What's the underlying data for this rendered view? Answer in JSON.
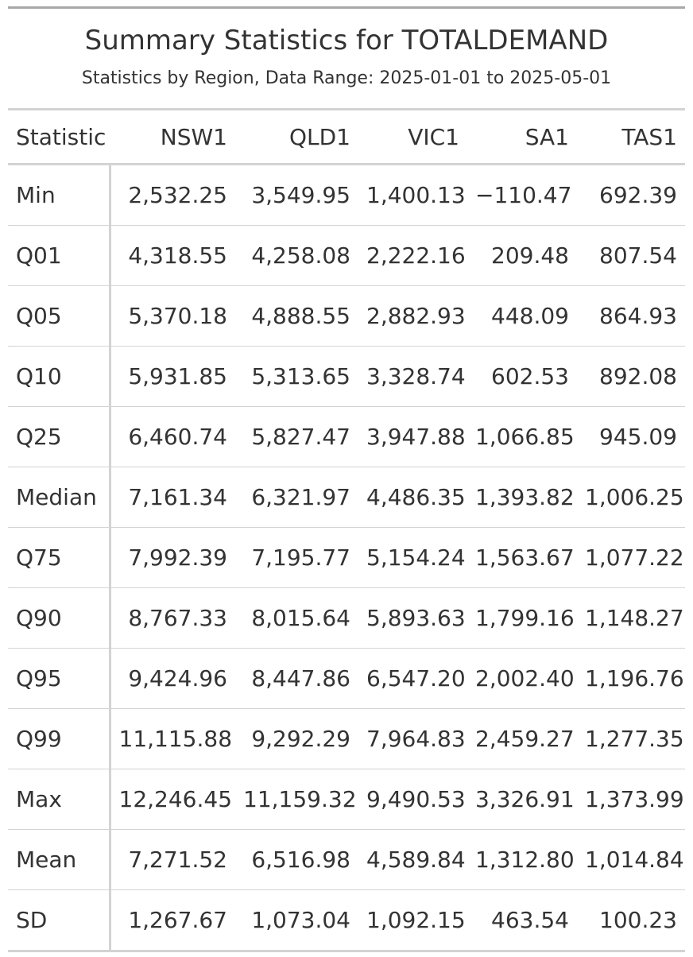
{
  "title": "Summary Statistics for TOTALDEMAND",
  "subtitle": "Statistics by Region, Data Range: 2025-01-01 to 2025-05-01",
  "columns": [
    "Statistic",
    "NSW1",
    "QLD1",
    "VIC1",
    "SA1",
    "TAS1"
  ],
  "rows": [
    {
      "stat": "Min",
      "values": [
        "2,532.25",
        "3,549.95",
        "1,400.13",
        "−110.47",
        "692.39"
      ]
    },
    {
      "stat": "Q01",
      "values": [
        "4,318.55",
        "4,258.08",
        "2,222.16",
        "209.48",
        "807.54"
      ]
    },
    {
      "stat": "Q05",
      "values": [
        "5,370.18",
        "4,888.55",
        "2,882.93",
        "448.09",
        "864.93"
      ]
    },
    {
      "stat": "Q10",
      "values": [
        "5,931.85",
        "5,313.65",
        "3,328.74",
        "602.53",
        "892.08"
      ]
    },
    {
      "stat": "Q25",
      "values": [
        "6,460.74",
        "5,827.47",
        "3,947.88",
        "1,066.85",
        "945.09"
      ]
    },
    {
      "stat": "Median",
      "values": [
        "7,161.34",
        "6,321.97",
        "4,486.35",
        "1,393.82",
        "1,006.25"
      ]
    },
    {
      "stat": "Q75",
      "values": [
        "7,992.39",
        "7,195.77",
        "5,154.24",
        "1,563.67",
        "1,077.22"
      ]
    },
    {
      "stat": "Q90",
      "values": [
        "8,767.33",
        "8,015.64",
        "5,893.63",
        "1,799.16",
        "1,148.27"
      ]
    },
    {
      "stat": "Q95",
      "values": [
        "9,424.96",
        "8,447.86",
        "6,547.20",
        "2,002.40",
        "1,196.76"
      ]
    },
    {
      "stat": "Q99",
      "values": [
        "11,115.88",
        "9,292.29",
        "7,964.83",
        "2,459.27",
        "1,277.35"
      ]
    },
    {
      "stat": "Max",
      "values": [
        "12,246.45",
        "11,159.32",
        "9,490.53",
        "3,326.91",
        "1,373.99"
      ]
    },
    {
      "stat": "Mean",
      "values": [
        "7,271.52",
        "6,516.98",
        "4,589.84",
        "1,312.80",
        "1,014.84"
      ]
    },
    {
      "stat": "SD",
      "values": [
        "1,267.67",
        "1,073.04",
        "1,092.15",
        "463.54",
        "100.23"
      ]
    }
  ]
}
